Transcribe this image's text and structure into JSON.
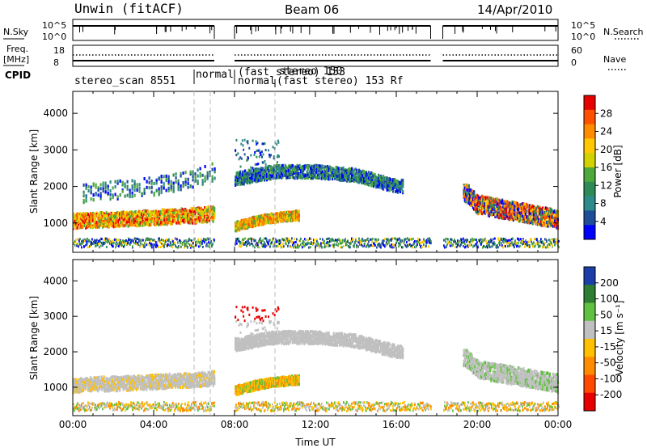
{
  "header": {
    "station": "Unwin (fitACF)",
    "beam": "Beam 06",
    "date": "14/Apr/2010"
  },
  "side_labels": {
    "nsky": "N.Sky",
    "nsearch": "N.Search",
    "freq": "Freq.",
    "freq_unit": "[MHz]",
    "nave": "Nave",
    "cpid": "CPID"
  },
  "strip_ticks": {
    "noise_left": [
      "10^5",
      "10^0"
    ],
    "noise_right": [
      "10^5",
      "10^0"
    ],
    "freq_left": [
      "18",
      "8"
    ],
    "freq_right": [
      "60",
      "0"
    ]
  },
  "cpid_labels": [
    {
      "text": "stereo_scan 8551"
    },
    {
      "text": "normal"
    },
    {
      "text": "(fast stereo) 153"
    },
    {
      "text": "normal"
    },
    {
      "text": "(fast stereo) 153 Rf"
    },
    {
      "text": "stereo 150"
    }
  ],
  "colorbars": {
    "power": {
      "label": "Power [dB]",
      "ticks": [
        "28",
        "24",
        "20",
        "16",
        "12",
        "8",
        "4"
      ],
      "colors": [
        "#e60000",
        "#ff5000",
        "#ff8c00",
        "#ffc800",
        "#d2d200",
        "#4ea83c",
        "#2e8b57",
        "#2e8b8b",
        "#1f4e99",
        "#0000ff"
      ]
    },
    "velocity": {
      "label": "Velocity [m s⁻¹]",
      "ticks": [
        "200",
        "100",
        "50",
        "15",
        "-15",
        "-50",
        "-100",
        "-200"
      ],
      "colors": [
        "#1c3ea8",
        "#2e7d32",
        "#60c040",
        "#c0c0c0",
        "#ffc000",
        "#ff8c00",
        "#ff4a00",
        "#e60000"
      ]
    }
  },
  "chart_data": [
    {
      "type": "heatmap",
      "panel": "power",
      "ylabel": "Slant Range [km]",
      "xlabel": "",
      "ylim": [
        200,
        4600
      ],
      "yticks": [
        1000,
        2000,
        3000,
        4000
      ],
      "xlim_hours": [
        0,
        24
      ],
      "series": [
        {
          "name": "",
          "x": [
            0,
            1,
            2,
            3,
            4,
            5,
            6,
            7
          ],
          "y": [
            1050,
            1080,
            1100,
            1120,
            1150,
            1180,
            1200,
            1250
          ]
        },
        {
          "name": "",
          "x": [
            0.5,
            2,
            4,
            6,
            7
          ],
          "y": [
            1800,
            1900,
            2000,
            2200,
            2400
          ]
        },
        {
          "name": "",
          "x": [
            8,
            9,
            10,
            11
          ],
          "y": [
            900,
            1050,
            1150,
            1200
          ]
        },
        {
          "name": "",
          "x": [
            8,
            9,
            10,
            12,
            14,
            16
          ],
          "y": [
            2200,
            2300,
            2400,
            2400,
            2300,
            2000
          ]
        },
        {
          "name": "",
          "x": [
            19.5,
            20,
            21,
            22,
            23,
            24
          ],
          "y": [
            1800,
            1500,
            1400,
            1300,
            1200,
            1100
          ]
        }
      ]
    },
    {
      "type": "heatmap",
      "panel": "velocity",
      "ylabel": "Slant Range [km]",
      "xlabel": "Time UT",
      "ylim": [
        200,
        4600
      ],
      "yticks": [
        1000,
        2000,
        3000,
        4000
      ],
      "xlim_hours": [
        0,
        24
      ],
      "xticks": [
        "00:00",
        "04:00",
        "08:00",
        "12:00",
        "16:00",
        "20:00",
        "00:00"
      ],
      "series": [
        {
          "name": "",
          "x": [
            0,
            1,
            2,
            3,
            4,
            5,
            6,
            7
          ],
          "y": [
            1050,
            1080,
            1100,
            1120,
            1150,
            1180,
            1200,
            1250
          ]
        },
        {
          "name": "",
          "x": [
            8,
            9,
            10,
            11
          ],
          "y": [
            900,
            1050,
            1150,
            1200
          ]
        },
        {
          "name": "",
          "x": [
            8,
            9,
            10,
            12,
            14,
            16
          ],
          "y": [
            2200,
            2300,
            2400,
            2400,
            2300,
            2000
          ]
        },
        {
          "name": "",
          "x": [
            19.5,
            20,
            21,
            22,
            23,
            24
          ],
          "y": [
            1800,
            1500,
            1400,
            1300,
            1200,
            1100
          ]
        }
      ]
    }
  ]
}
